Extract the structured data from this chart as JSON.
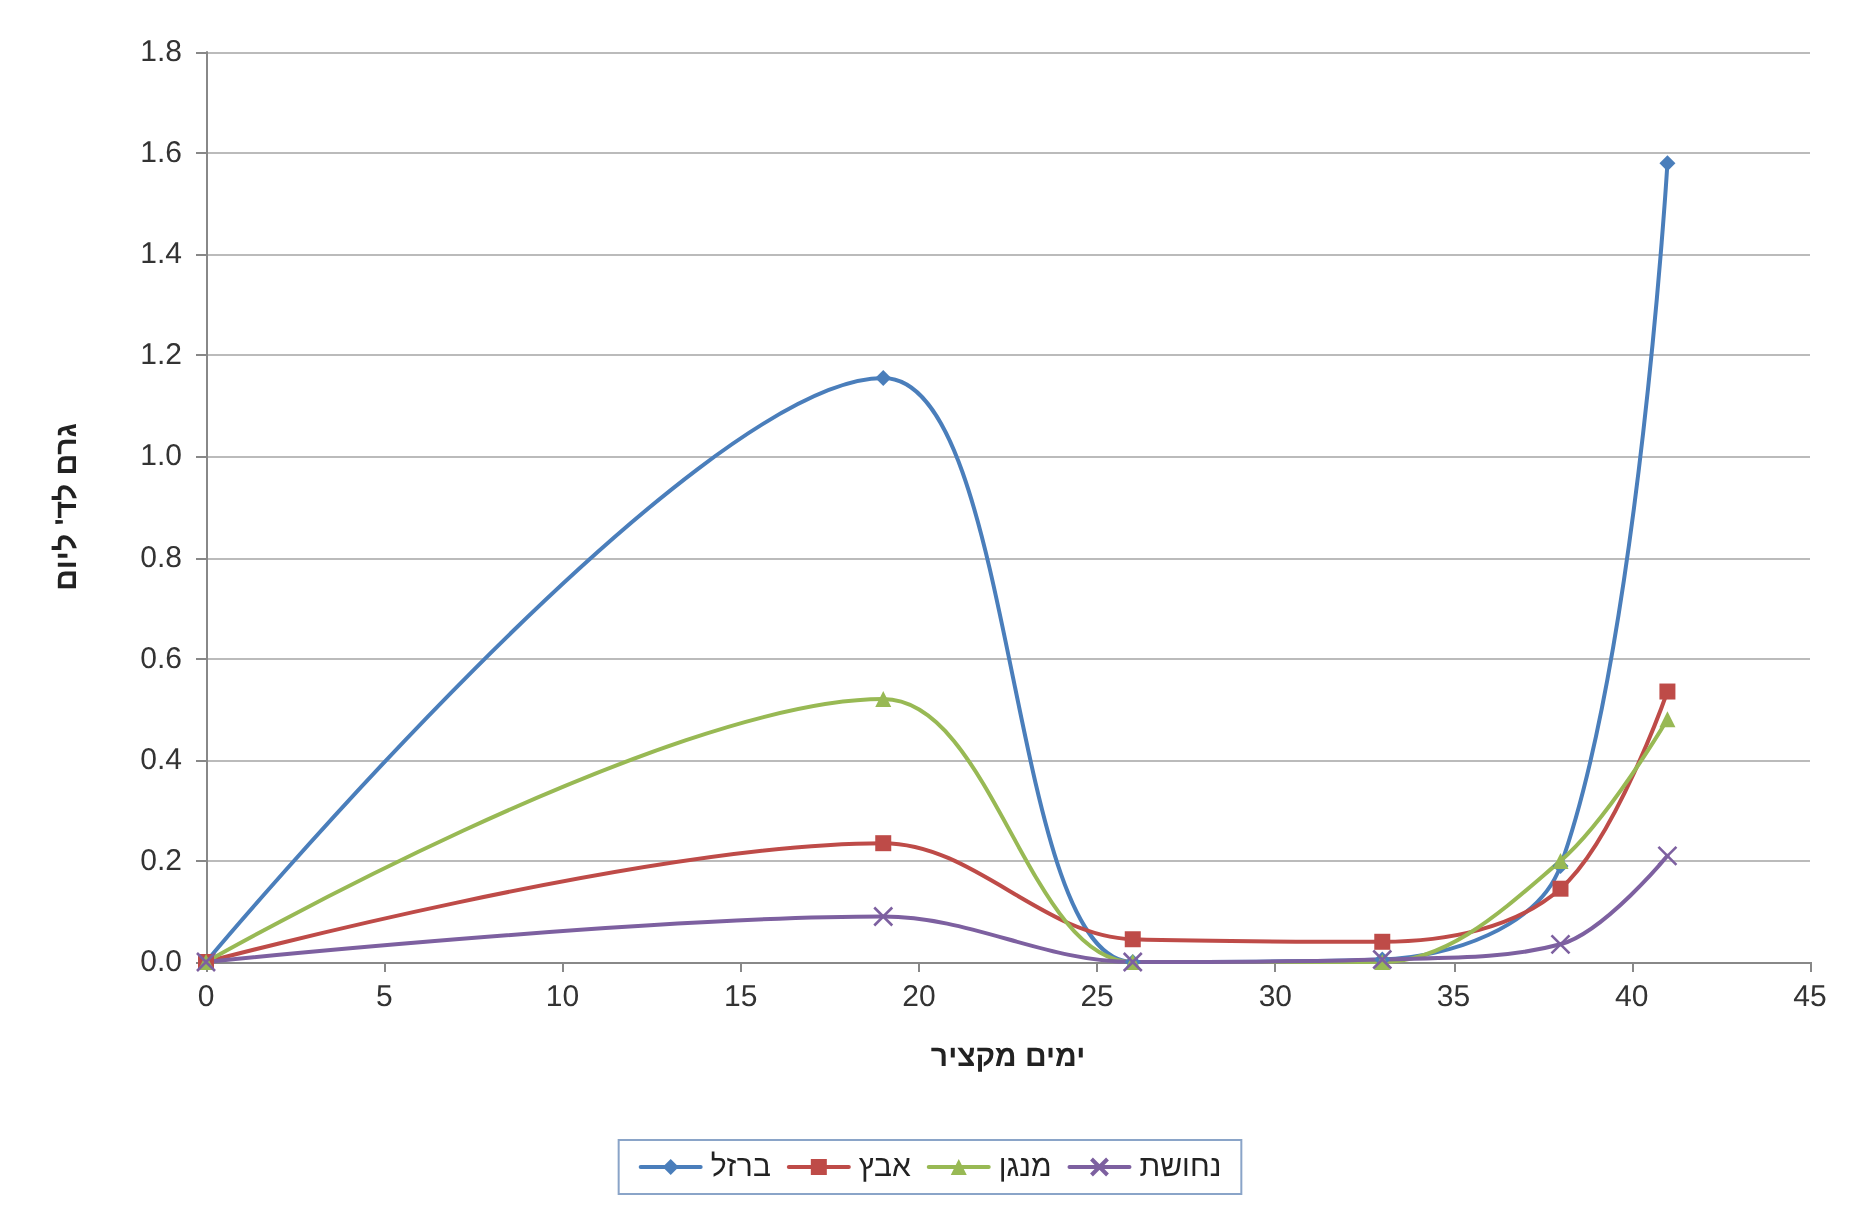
{
  "chart_data": {
    "type": "line",
    "xlabel": "ימים מקציר",
    "ylabel": "גרם לד' ליום",
    "x": [
      0,
      19,
      26,
      33,
      38,
      41
    ],
    "series": [
      {
        "name": "ברזל",
        "color": "#4a7ebb",
        "marker": "diamond",
        "values": [
          0,
          1.155,
          0,
          0.005,
          0.19,
          1.58
        ]
      },
      {
        "name": "אבץ",
        "color": "#be4b48",
        "marker": "square",
        "values": [
          0,
          0.235,
          0.045,
          0.04,
          0.145,
          0.535
        ]
      },
      {
        "name": "מנגן",
        "color": "#98b954",
        "marker": "triangle",
        "values": [
          0,
          0.52,
          0,
          0,
          0.2,
          0.48
        ]
      },
      {
        "name": "נחושת",
        "color": "#7d60a0",
        "marker": "cross",
        "values": [
          0,
          0.09,
          0,
          0.005,
          0.035,
          0.21
        ]
      }
    ],
    "xlim": [
      0,
      45
    ],
    "xticks": [
      0,
      5,
      10,
      15,
      20,
      25,
      30,
      35,
      40,
      45
    ],
    "ylim": [
      0,
      1.8
    ],
    "yticks": [
      {
        "value": 0,
        "label": "0.0"
      },
      0.2,
      0.4,
      0.6,
      0.8,
      {
        "value": 1,
        "label": "1.0"
      },
      1.2,
      1.4,
      1.6,
      1.8
    ],
    "grid": "y",
    "legend": "bottom",
    "line_style": "solid"
  }
}
